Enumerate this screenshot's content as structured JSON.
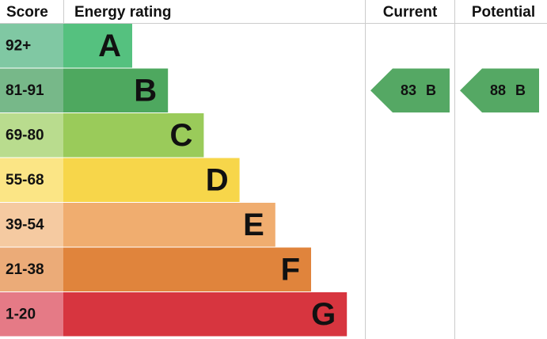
{
  "header": {
    "score": "Score",
    "rating": "Energy rating",
    "current": "Current",
    "potential": "Potential"
  },
  "bands": [
    {
      "score": "92+",
      "letter": "A",
      "color": "#55c17f",
      "score_color": "#80c8a3"
    },
    {
      "score": "81-91",
      "letter": "B",
      "color": "#4ea85f",
      "score_color": "#77b889"
    },
    {
      "score": "69-80",
      "letter": "C",
      "color": "#9acb5a",
      "score_color": "#b9dc8e"
    },
    {
      "score": "55-68",
      "letter": "D",
      "color": "#f7d64a",
      "score_color": "#fbe585"
    },
    {
      "score": "39-54",
      "letter": "E",
      "color": "#f0ad6f",
      "score_color": "#f5caa1"
    },
    {
      "score": "21-38",
      "letter": "F",
      "color": "#e0843c",
      "score_color": "#ebab78"
    },
    {
      "score": "1-20",
      "letter": "G",
      "color": "#d7353f",
      "score_color": "#e57a86"
    }
  ],
  "current": {
    "value": 83,
    "band": "B",
    "color": "#55a864"
  },
  "potential": {
    "value": 88,
    "band": "B",
    "color": "#55a864"
  }
}
